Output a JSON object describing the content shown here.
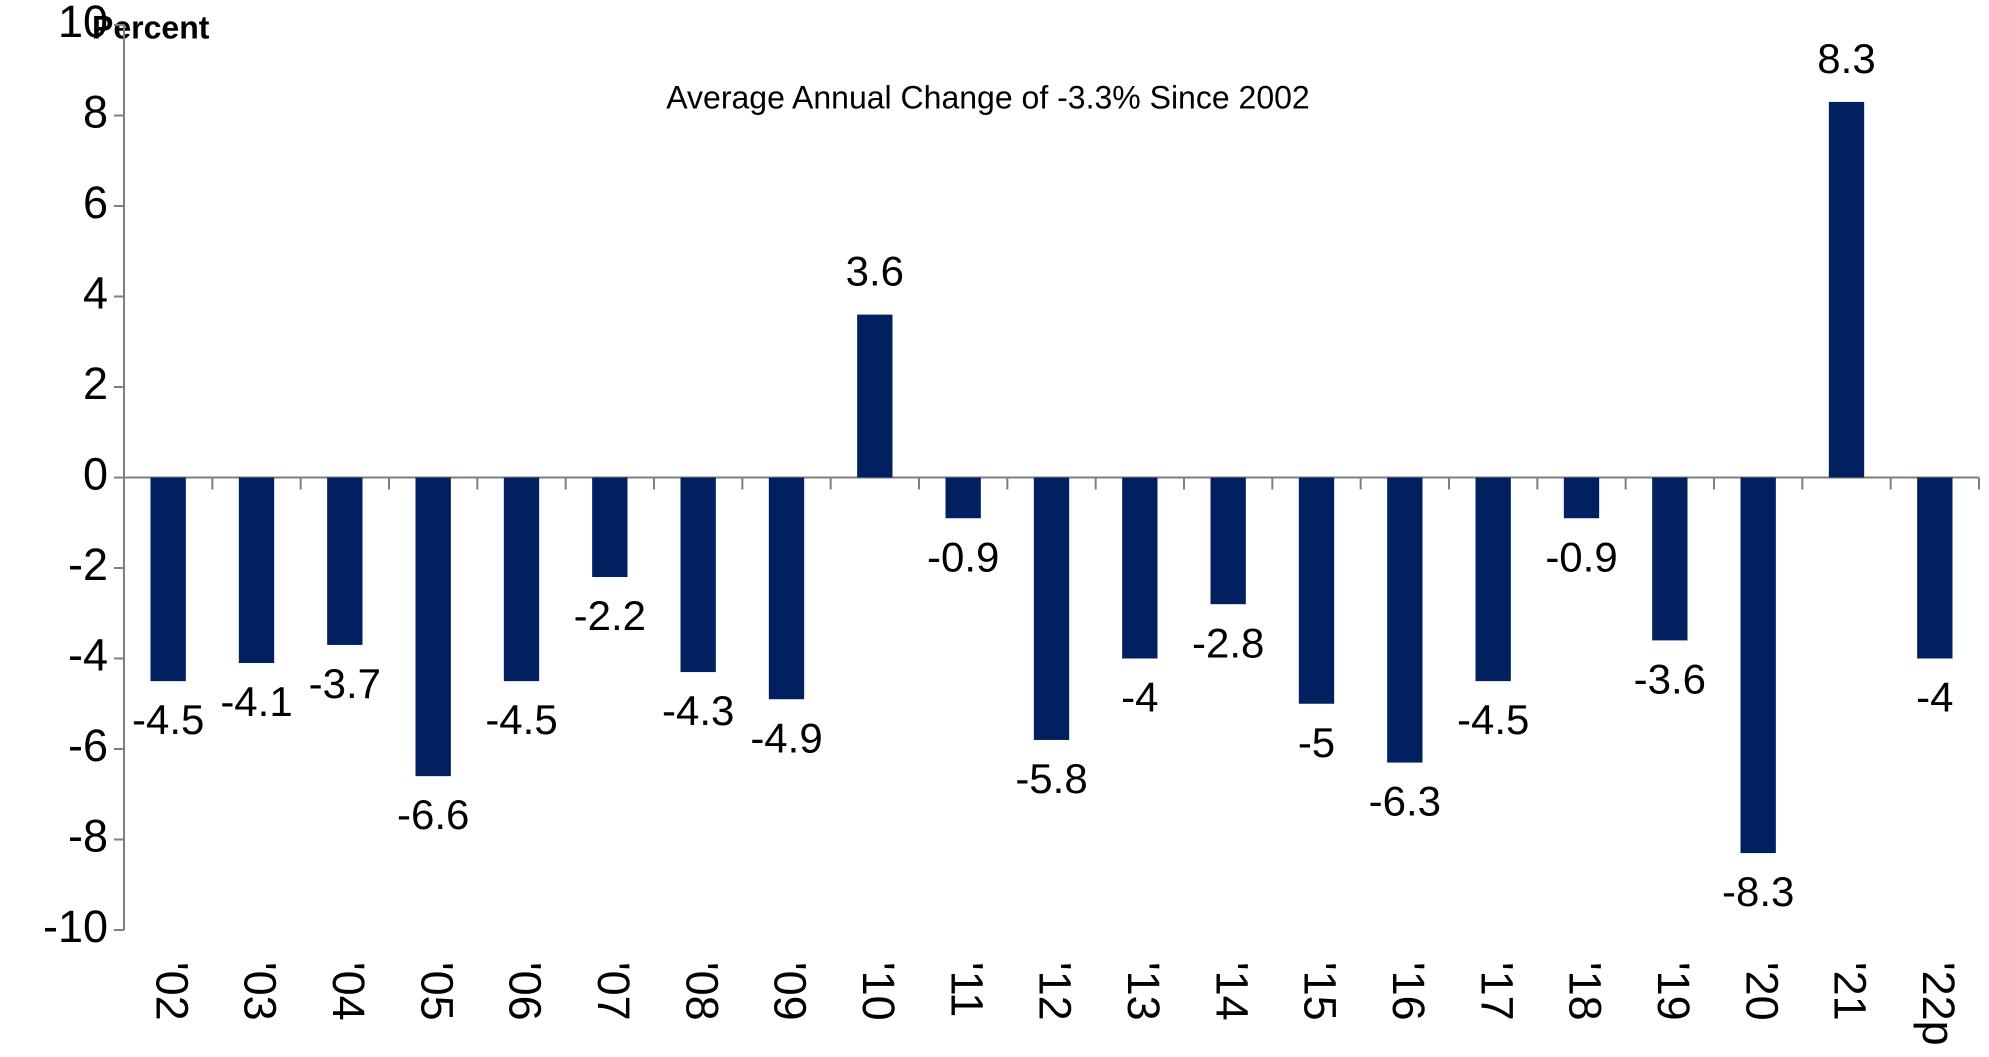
{
  "chart_data": {
    "type": "bar",
    "y_label": "Percent",
    "annotation": "Average Annual Change of -3.3% Since 2002",
    "categories": [
      "'02",
      "'03",
      "'04",
      "'05",
      "'06",
      "'07",
      "'08",
      "'09",
      "'10",
      "'11",
      "'12",
      "'13",
      "'14",
      "'15",
      "'16",
      "'17",
      "'18",
      "'19",
      "'20",
      "'21",
      "'22p"
    ],
    "values": [
      -4.5,
      -4.1,
      -3.7,
      -6.6,
      -4.5,
      -2.2,
      -4.3,
      -4.9,
      3.6,
      -0.9,
      -5.8,
      -4,
      -2.8,
      -5,
      -6.3,
      -4.5,
      -0.9,
      -3.6,
      -8.3,
      8.3,
      -4
    ],
    "color": "#002060",
    "ylim": [
      -10,
      10
    ],
    "yticks": [
      -10,
      -8,
      -6,
      -4,
      -2,
      0,
      2,
      4,
      6,
      8,
      10
    ],
    "grid": false
  }
}
